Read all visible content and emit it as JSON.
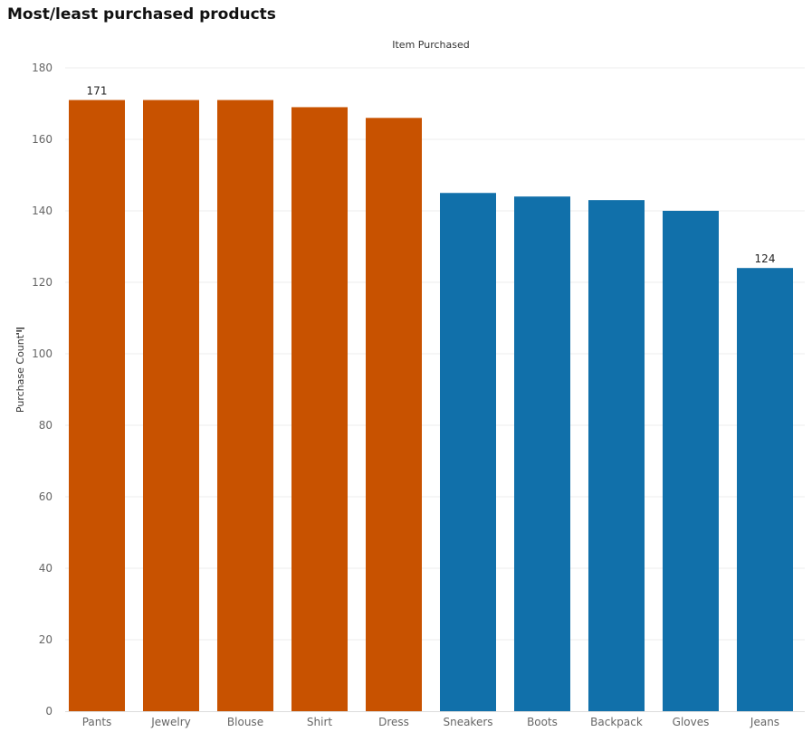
{
  "chart_data": {
    "type": "bar",
    "title": "Most/least purchased products",
    "xlabel": "Item Purchased",
    "ylabel": "Purchase Count",
    "ylim": [
      0,
      180
    ],
    "yticks": [
      0,
      20,
      40,
      60,
      80,
      100,
      120,
      140,
      160,
      180
    ],
    "grid": true,
    "categories": [
      "Pants",
      "Jewelry",
      "Blouse",
      "Shirt",
      "Dress",
      "Sneakers",
      "Boots",
      "Backpack",
      "Gloves",
      "Jeans"
    ],
    "values": [
      171,
      171,
      171,
      169,
      166,
      145,
      144,
      143,
      140,
      124
    ],
    "groups": [
      "most",
      "most",
      "most",
      "most",
      "most",
      "least",
      "least",
      "least",
      "least",
      "least"
    ],
    "data_labels": {
      "0": "171",
      "9": "124"
    },
    "colors": {
      "most": "#C85200",
      "least": "#1170AA",
      "grid": "#EEEEEE",
      "axis": "#DDDDDD"
    }
  }
}
